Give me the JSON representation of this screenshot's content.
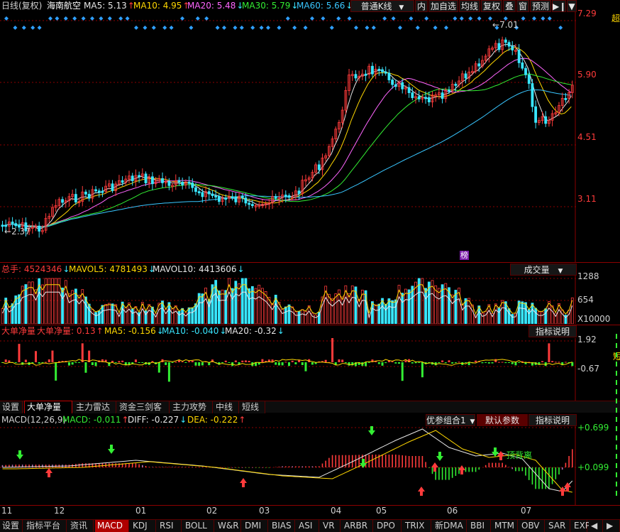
{
  "header": {
    "period": "日线(复权)",
    "stock": "海南航空",
    "ma": [
      {
        "label": "MA5: 5.13",
        "dir": "up",
        "color": "#e6e6e6"
      },
      {
        "label": "MA10: 4.95",
        "dir": "up",
        "color": "#ffd700"
      },
      {
        "label": "MA20: 5.48",
        "dir": "dn",
        "color": "#ff66ff"
      },
      {
        "label": "MA30: 5.79",
        "dir": "dn",
        "color": "#33ee33"
      },
      {
        "label": "MA60: 5.66",
        "dir": "dn",
        "color": "#39c6ff"
      }
    ],
    "chart_type_select": "普通K线",
    "toolbar": [
      "内",
      "加自选",
      "均线",
      "复权",
      "叠",
      "窗",
      "预测"
    ],
    "right_cut": "超"
  },
  "price_panel": {
    "y_labels": [
      "7.29",
      "5.90",
      "4.51",
      "3.11"
    ],
    "annot_high": "7.01",
    "annot_low": "2.37",
    "badge": "榜"
  },
  "volume_panel": {
    "total": "总手: 4524346",
    "mavol5": "MAVOL5: 4781493",
    "mavol10": "MAVOL10: 4413606",
    "select": "成交量",
    "y_labels": [
      "1288",
      "654"
    ],
    "unit": "X10000"
  },
  "netvol_panel": {
    "title": "大单净量",
    "value": "大单净量: 0.13",
    "ma5": "MA5: -0.156",
    "ma10": "MA10: -0.040",
    "ma20": "MA20: -0.32",
    "help": "指标说明",
    "y_labels": [
      "1.92",
      "-0.67"
    ],
    "right_cut": "短"
  },
  "mid_tabs": [
    "设置",
    "大单净量",
    "主力雷达",
    "资金三剑客",
    "主力攻势",
    "中线",
    "短线"
  ],
  "macd_panel": {
    "title": "MACD(12,26,9)",
    "macd": "MACD: -0.011",
    "diff": "DIFF: -0.227",
    "dea": "DEA: -0.222",
    "preset": "优参组合1",
    "default_btn": "默认参数",
    "help": "指标说明",
    "annotation": "顶背离",
    "y_labels": [
      "+0.699",
      "+0.099"
    ]
  },
  "x_axis": [
    "11",
    "12",
    "01",
    "02",
    "03",
    "04",
    "05",
    "06",
    "07"
  ],
  "bottom_tabs": [
    "设置",
    "指标平台",
    "资讯",
    "MACD",
    "KDJ",
    "RSI",
    "BOLL",
    "W&R",
    "DMI",
    "BIAS",
    "ASI",
    "VR",
    "ARBR",
    "DPO",
    "TRIX",
    "新DMA",
    "BBI",
    "MTM",
    "OBV",
    "SAR",
    "EXP"
  ],
  "colors": {
    "up": "#ff3b3b",
    "down": "#39e6ff",
    "ma5": "#e6e6e6",
    "ma10": "#ffd700",
    "ma20": "#ff66ff",
    "ma30": "#33ee33",
    "ma60": "#39c6ff",
    "grid": "#8b0000"
  }
}
